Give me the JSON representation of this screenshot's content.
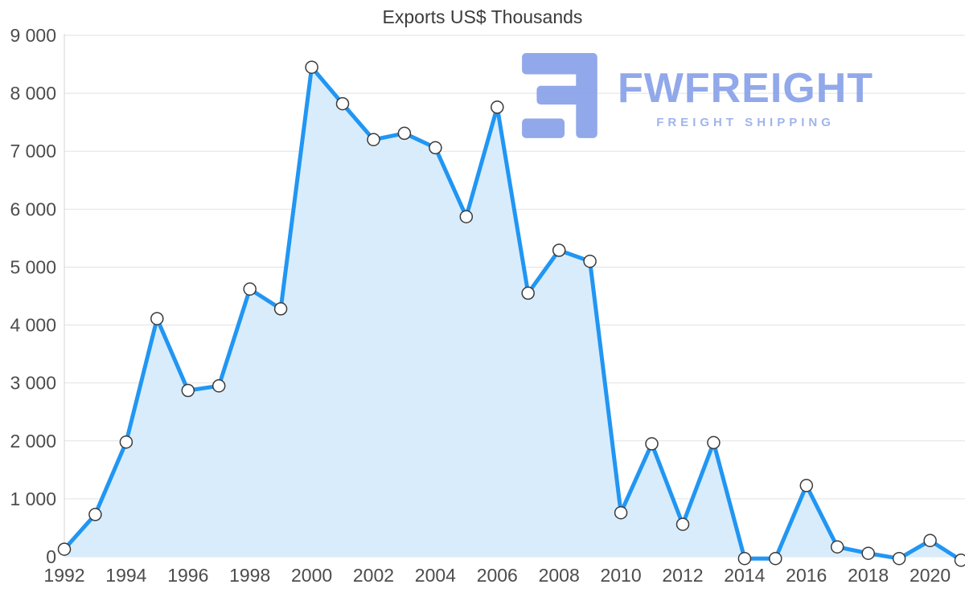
{
  "watermark": {
    "brand": "FWFREIGHT",
    "tagline": "FREIGHT SHIPPING",
    "color": "#8ca4e9"
  },
  "chart_data": {
    "type": "area",
    "title": "Exports US$ Thousands",
    "x": [
      1992,
      1993,
      1994,
      1995,
      1996,
      1997,
      1998,
      1999,
      2000,
      2001,
      2002,
      2003,
      2004,
      2005,
      2006,
      2007,
      2008,
      2009,
      2010,
      2011,
      2012,
      2013,
      2014,
      2015,
      2016,
      2017,
      2018,
      2019,
      2020,
      2021
    ],
    "values": [
      130,
      730,
      1980,
      4110,
      2870,
      2950,
      4620,
      4280,
      8450,
      7820,
      7200,
      7310,
      7060,
      5870,
      7760,
      4550,
      5290,
      5100,
      760,
      1950,
      560,
      1970,
      -30,
      -30,
      1230,
      170,
      60,
      -30,
      280,
      -60
    ],
    "xlabel": "",
    "ylabel": "",
    "ylim": [
      0,
      9000
    ],
    "ytick_step": 1000,
    "ytick_labels": [
      "0",
      "1 000",
      "2 000",
      "3 000",
      "4 000",
      "5 000",
      "6 000",
      "7 000",
      "8 000",
      "9 000"
    ],
    "xtick_labels": [
      "1992",
      "1994",
      "1996",
      "1998",
      "2000",
      "2002",
      "2004",
      "2006",
      "2008",
      "2010",
      "2012",
      "2014",
      "2016",
      "2018",
      "2020"
    ],
    "grid": true,
    "legend": "none",
    "line_color": "#2196f3",
    "fill_color": "#d9ecfb",
    "marker_fill": "#ffffff",
    "marker_stroke": "#3a3a3a",
    "grid_color": "#e2e2e2",
    "axis_text_color": "#4c4c4c"
  }
}
